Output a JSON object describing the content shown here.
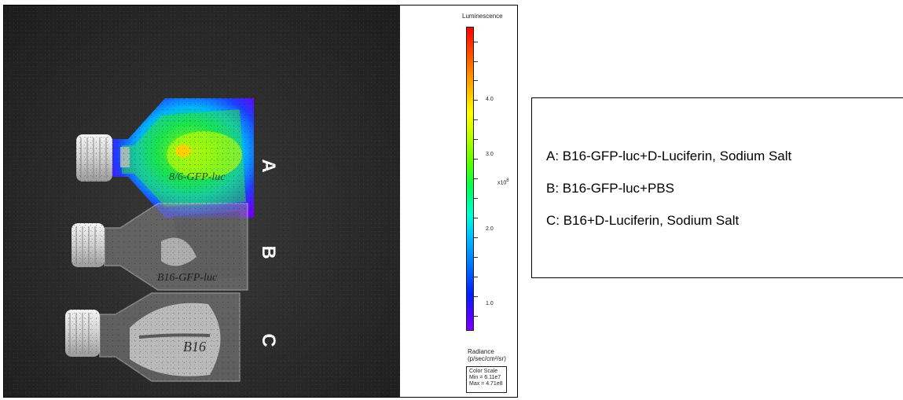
{
  "flask_labels": [
    "A",
    "B",
    "C"
  ],
  "color_scale": {
    "title": "Luminescence",
    "tick_labels": [
      "4.0",
      "3.0",
      "2.0",
      "1.0"
    ],
    "multiplier": "x10",
    "exponent": "8",
    "radiance_label": "Radiance",
    "radiance_units": "(p/sec/cm²/sr)",
    "box_title": "Color Scale",
    "min": "Min = 6.11e7",
    "max": "Max = 4.71e8"
  },
  "legend": {
    "items": [
      "A: B16-GFP-luc+D-Luciferin, Sodium Salt",
      "B: B16-GFP-luc+PBS",
      "C: B16+D-Luciferin, Sodium Salt"
    ]
  },
  "flask_writing": [
    "B16-GFP-luc",
    "B16-GFP-luc",
    "B16"
  ]
}
